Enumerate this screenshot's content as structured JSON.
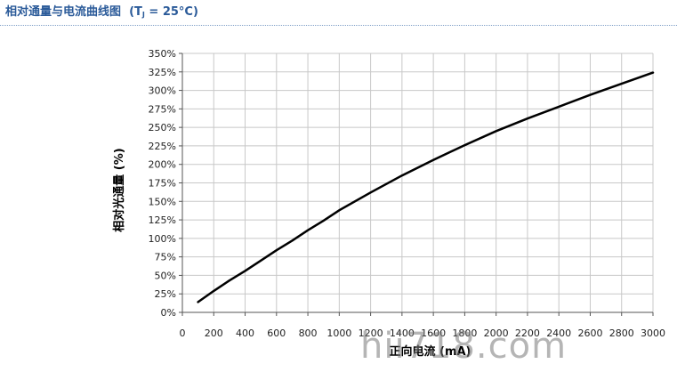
{
  "heading": {
    "title": "相对通量与电流曲线图",
    "condition_prefix": "(T",
    "condition_subscript": "J",
    "condition_suffix": " = 25°C)"
  },
  "watermark": "hii718.com",
  "chart_data": {
    "type": "line",
    "xlabel": "正向电流 (mA)",
    "ylabel": "相对光通量 (%)",
    "xlim": [
      0,
      3000
    ],
    "ylim": [
      0,
      350
    ],
    "x_ticks": [
      0,
      200,
      400,
      600,
      800,
      1000,
      1200,
      1400,
      1600,
      1800,
      2000,
      2200,
      2400,
      2600,
      2800,
      3000
    ],
    "x_tick_labels": [
      "0",
      "200",
      "400",
      "600",
      "800",
      "1000",
      "1200",
      "1400",
      "1600",
      "1800",
      "2000",
      "2200",
      "2400",
      "2600",
      "2800",
      "3000"
    ],
    "y_ticks": [
      0,
      25,
      50,
      75,
      100,
      125,
      150,
      175,
      200,
      225,
      250,
      275,
      300,
      325,
      350
    ],
    "y_tick_labels": [
      "0%",
      "25%",
      "50%",
      "75%",
      "100%",
      "125%",
      "150%",
      "175%",
      "200%",
      "225%",
      "250%",
      "275%",
      "300%",
      "325%",
      "350%"
    ],
    "grid": true,
    "series": [
      {
        "x": [
          100,
          200,
          300,
          400,
          500,
          600,
          700,
          800,
          900,
          1000,
          1200,
          1400,
          1600,
          1800,
          2000,
          2200,
          2400,
          2600,
          2800,
          3000
        ],
        "values": [
          14,
          29,
          43,
          56,
          70,
          84,
          97,
          111,
          124,
          138,
          162,
          185,
          206,
          226,
          245,
          262,
          278,
          294,
          309,
          324
        ]
      }
    ],
    "colors": {
      "line": "#000000",
      "grid": "#c8c8c8",
      "axis": "#555555"
    }
  }
}
